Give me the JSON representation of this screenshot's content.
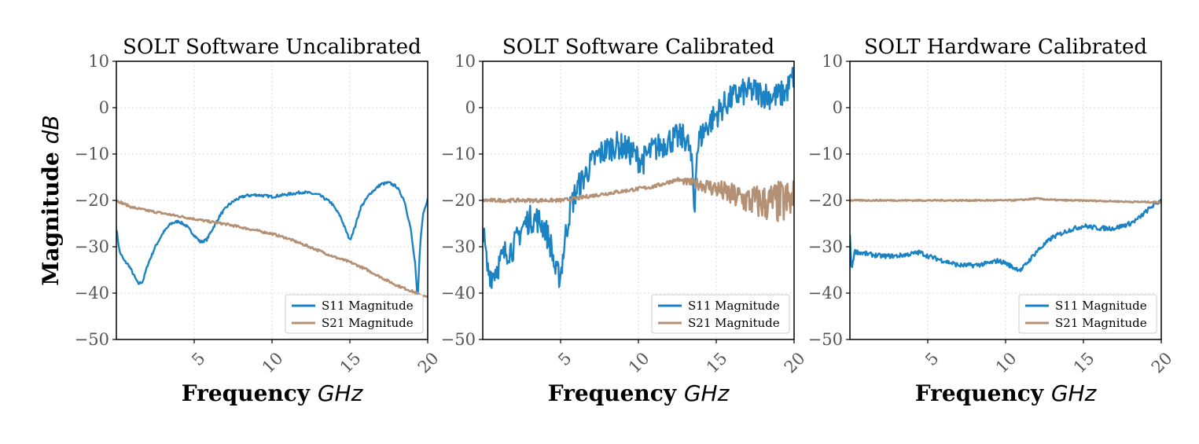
{
  "colors": {
    "s11": "#1b82c4",
    "s21": "#b49074"
  },
  "figure": {
    "ylabel": "Magnitude",
    "ylabel_unit": "dB",
    "xlabel": "Frequency",
    "xlabel_unit": "GHz"
  },
  "chart_data": [
    {
      "type": "line",
      "title": "SOLT Software Uncalibrated",
      "xlabel": "Frequency GHz",
      "ylabel": "Magnitude dB",
      "xlim": [
        0,
        20
      ],
      "ylim": [
        -50,
        10
      ],
      "xticks": [
        5,
        10,
        15,
        20
      ],
      "yticks": [
        10,
        0,
        -10,
        -20,
        -30,
        -40,
        -50
      ],
      "grid": true,
      "legend": "lower-right",
      "series": [
        {
          "name": "S11 Magnitude",
          "color": "#1b82c4",
          "noise": 0.3,
          "x": [
            0,
            0.2,
            0.5,
            0.8,
            1.1,
            1.4,
            1.7,
            2.0,
            2.5,
            3.0,
            3.5,
            4.0,
            4.5,
            5.0,
            5.4,
            5.8,
            6.2,
            6.7,
            7.2,
            7.7,
            8.3,
            9.0,
            10.0,
            11.0,
            12.0,
            13.0,
            13.8,
            14.4,
            14.8,
            15.0,
            15.3,
            15.7,
            16.3,
            17.0,
            17.5,
            18.0,
            18.5,
            18.9,
            19.2,
            19.35,
            19.5,
            19.7,
            20.0
          ],
          "y": [
            -26,
            -31,
            -33,
            -34,
            -36,
            -38,
            -37.5,
            -34,
            -30,
            -27,
            -25,
            -24.5,
            -25.5,
            -27.5,
            -29,
            -28.5,
            -26,
            -23,
            -21,
            -19.8,
            -19,
            -18.8,
            -19.2,
            -18.7,
            -18.2,
            -18.8,
            -20.5,
            -23.5,
            -27,
            -28.5,
            -26,
            -21.5,
            -18.5,
            -16.5,
            -16.2,
            -17,
            -20,
            -26,
            -34,
            -42,
            -30,
            -23,
            -19.5
          ]
        },
        {
          "name": "S21 Magnitude",
          "color": "#b49074",
          "noise": 0.25,
          "x": [
            0,
            1,
            2,
            3,
            4,
            5,
            6,
            7,
            8,
            9,
            10,
            11,
            12,
            13,
            14,
            15,
            16,
            17,
            18,
            19,
            20
          ],
          "y": [
            -20,
            -21.5,
            -22.2,
            -22.8,
            -23.4,
            -24,
            -24.6,
            -25.1,
            -25.8,
            -26.5,
            -27.2,
            -28.2,
            -29.5,
            -30.8,
            -32.2,
            -33.3,
            -34.8,
            -36.6,
            -38.3,
            -39.6,
            -41
          ]
        }
      ]
    },
    {
      "type": "line",
      "title": "SOLT Software Calibrated",
      "xlabel": "Frequency GHz",
      "ylabel": "",
      "xlim": [
        0,
        20
      ],
      "ylim": [
        -50,
        10
      ],
      "xticks": [
        5,
        10,
        15,
        20
      ],
      "yticks": [
        10,
        0,
        -10,
        -20,
        -30,
        -40,
        -50
      ],
      "grid": true,
      "legend": "lower-right",
      "series": [
        {
          "name": "S11 Magnitude",
          "color": "#1b82c4",
          "noise": 3.0,
          "x": [
            0,
            0.3,
            0.6,
            1.0,
            1.5,
            2.0,
            2.5,
            3.0,
            3.5,
            4.0,
            4.4,
            4.7,
            5.0,
            5.3,
            5.6,
            6.0,
            6.5,
            7.0,
            7.5,
            8.0,
            8.5,
            9.0,
            9.5,
            10.0,
            10.3,
            10.6,
            11.0,
            11.5,
            12.0,
            12.5,
            13.0,
            13.3,
            13.5,
            13.6,
            13.7,
            13.9,
            14.2,
            14.5,
            15.0,
            15.5,
            16.0,
            16.5,
            17.0,
            17.5,
            18.0,
            18.5,
            19.0,
            19.5,
            20.0
          ],
          "y": [
            -26,
            -35,
            -36,
            -34,
            -31,
            -30,
            -26,
            -24,
            -24,
            -26,
            -30,
            -36,
            -36,
            -28,
            -22,
            -18,
            -15,
            -12,
            -10,
            -9,
            -8,
            -8.5,
            -9.5,
            -11,
            -11.5,
            -10,
            -9,
            -8,
            -7,
            -6.5,
            -6.5,
            -9,
            -15,
            -24,
            -11,
            -7,
            -5,
            -3.5,
            -1.5,
            0.5,
            2,
            3,
            3.5,
            3.5,
            3,
            2.5,
            2.5,
            3.5,
            7
          ]
        },
        {
          "name": "S21 Magnitude",
          "color": "#b49074",
          "noise": 0.4,
          "noise_grow": [
            12.5,
            20,
            5
          ],
          "x": [
            0,
            1,
            2,
            3,
            4,
            5,
            5.5,
            6,
            7,
            8,
            9,
            10,
            11,
            12,
            12.5,
            13,
            14,
            15,
            16,
            17,
            18,
            19,
            20
          ],
          "y": [
            -20,
            -20,
            -20,
            -20,
            -20,
            -20,
            -19.8,
            -19.6,
            -19,
            -18.5,
            -18,
            -17.5,
            -17,
            -16,
            -15.5,
            -16,
            -16.5,
            -17.5,
            -19,
            -20,
            -20.5,
            -20.5,
            -20.5
          ]
        }
      ]
    },
    {
      "type": "line",
      "title": "SOLT Hardware Calibrated",
      "xlabel": "Frequency GHz",
      "ylabel": "",
      "xlim": [
        0,
        20
      ],
      "ylim": [
        -50,
        10
      ],
      "xticks": [
        5,
        10,
        15,
        20
      ],
      "yticks": [
        10,
        0,
        -10,
        -20,
        -30,
        -40,
        -50
      ],
      "grid": true,
      "legend": "lower-right",
      "series": [
        {
          "name": "S11 Magnitude",
          "color": "#1b82c4",
          "noise": 0.5,
          "x": [
            0,
            0.1,
            0.3,
            1,
            2,
            3,
            4,
            4.5,
            5,
            6,
            7,
            8,
            9,
            9.5,
            10,
            10.5,
            11,
            11.5,
            12,
            12.5,
            13,
            14,
            15,
            16,
            17,
            18,
            18.5,
            19,
            19.5,
            20
          ],
          "y": [
            -27,
            -35,
            -31,
            -31.5,
            -32,
            -32,
            -31.5,
            -31.2,
            -32,
            -33,
            -34,
            -34,
            -33.5,
            -33,
            -33.5,
            -34.5,
            -35,
            -33,
            -31,
            -29.5,
            -28,
            -26.5,
            -25.5,
            -26,
            -26,
            -25,
            -24,
            -22.5,
            -21,
            -20
          ]
        },
        {
          "name": "S21 Magnitude",
          "color": "#b49074",
          "noise": 0.15,
          "x": [
            0,
            2,
            4,
            6,
            8,
            10,
            11,
            12,
            13,
            14,
            16,
            18,
            20
          ],
          "y": [
            -20,
            -20,
            -20,
            -20,
            -20,
            -20,
            -19.9,
            -19.6,
            -19.9,
            -20,
            -20.1,
            -20.3,
            -20.4
          ]
        }
      ]
    }
  ]
}
